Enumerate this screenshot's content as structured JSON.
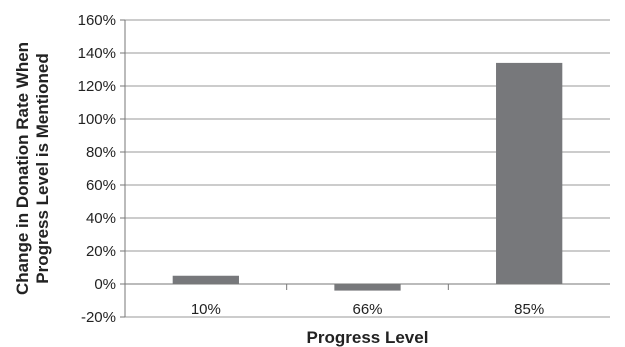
{
  "chart_data": {
    "type": "bar",
    "title": "",
    "xlabel": "Progress Level",
    "ylabel": [
      "Change in Donation Rate When",
      "Progress Level is Mentioned"
    ],
    "categories": [
      "10%",
      "66%",
      "85%"
    ],
    "values": [
      5,
      -4,
      134
    ],
    "value_unit": "%",
    "ylim": [
      -20,
      160
    ],
    "yticks": [
      -20,
      0,
      20,
      40,
      60,
      80,
      100,
      120,
      140,
      160
    ],
    "ytick_labels": [
      "-20%",
      "0%",
      "20%",
      "40%",
      "60%",
      "80%",
      "100%",
      "120%",
      "140%",
      "160%"
    ],
    "grid": true,
    "legend": "none",
    "colors": {
      "bar": "#77787b",
      "grid": "#999999",
      "axis": "#777777",
      "text": "#222222"
    }
  }
}
